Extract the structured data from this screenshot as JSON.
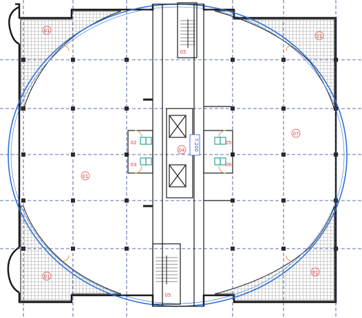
{
  "drawing": {
    "room_labels": {
      "zone_left": "01",
      "zone_right": "07",
      "corner_tl": "01",
      "corner_tr": "01",
      "corner_bl": "01",
      "corner_br": "01",
      "core_center": "04",
      "toilet_left_upper": "02",
      "toilet_left_lower": "03",
      "toilet_right_upper": "05",
      "toilet_right_lower": "06"
    },
    "elevation_tag": "7.200",
    "stair_marks": [
      "05",
      "05"
    ],
    "colors": {
      "line": "#1a1a1a",
      "grid": "#2a3f9a",
      "curve": "#2f6fd6",
      "label": "#d63a3a",
      "toilet": "#2aa39a",
      "door": "#e0a36a"
    }
  }
}
